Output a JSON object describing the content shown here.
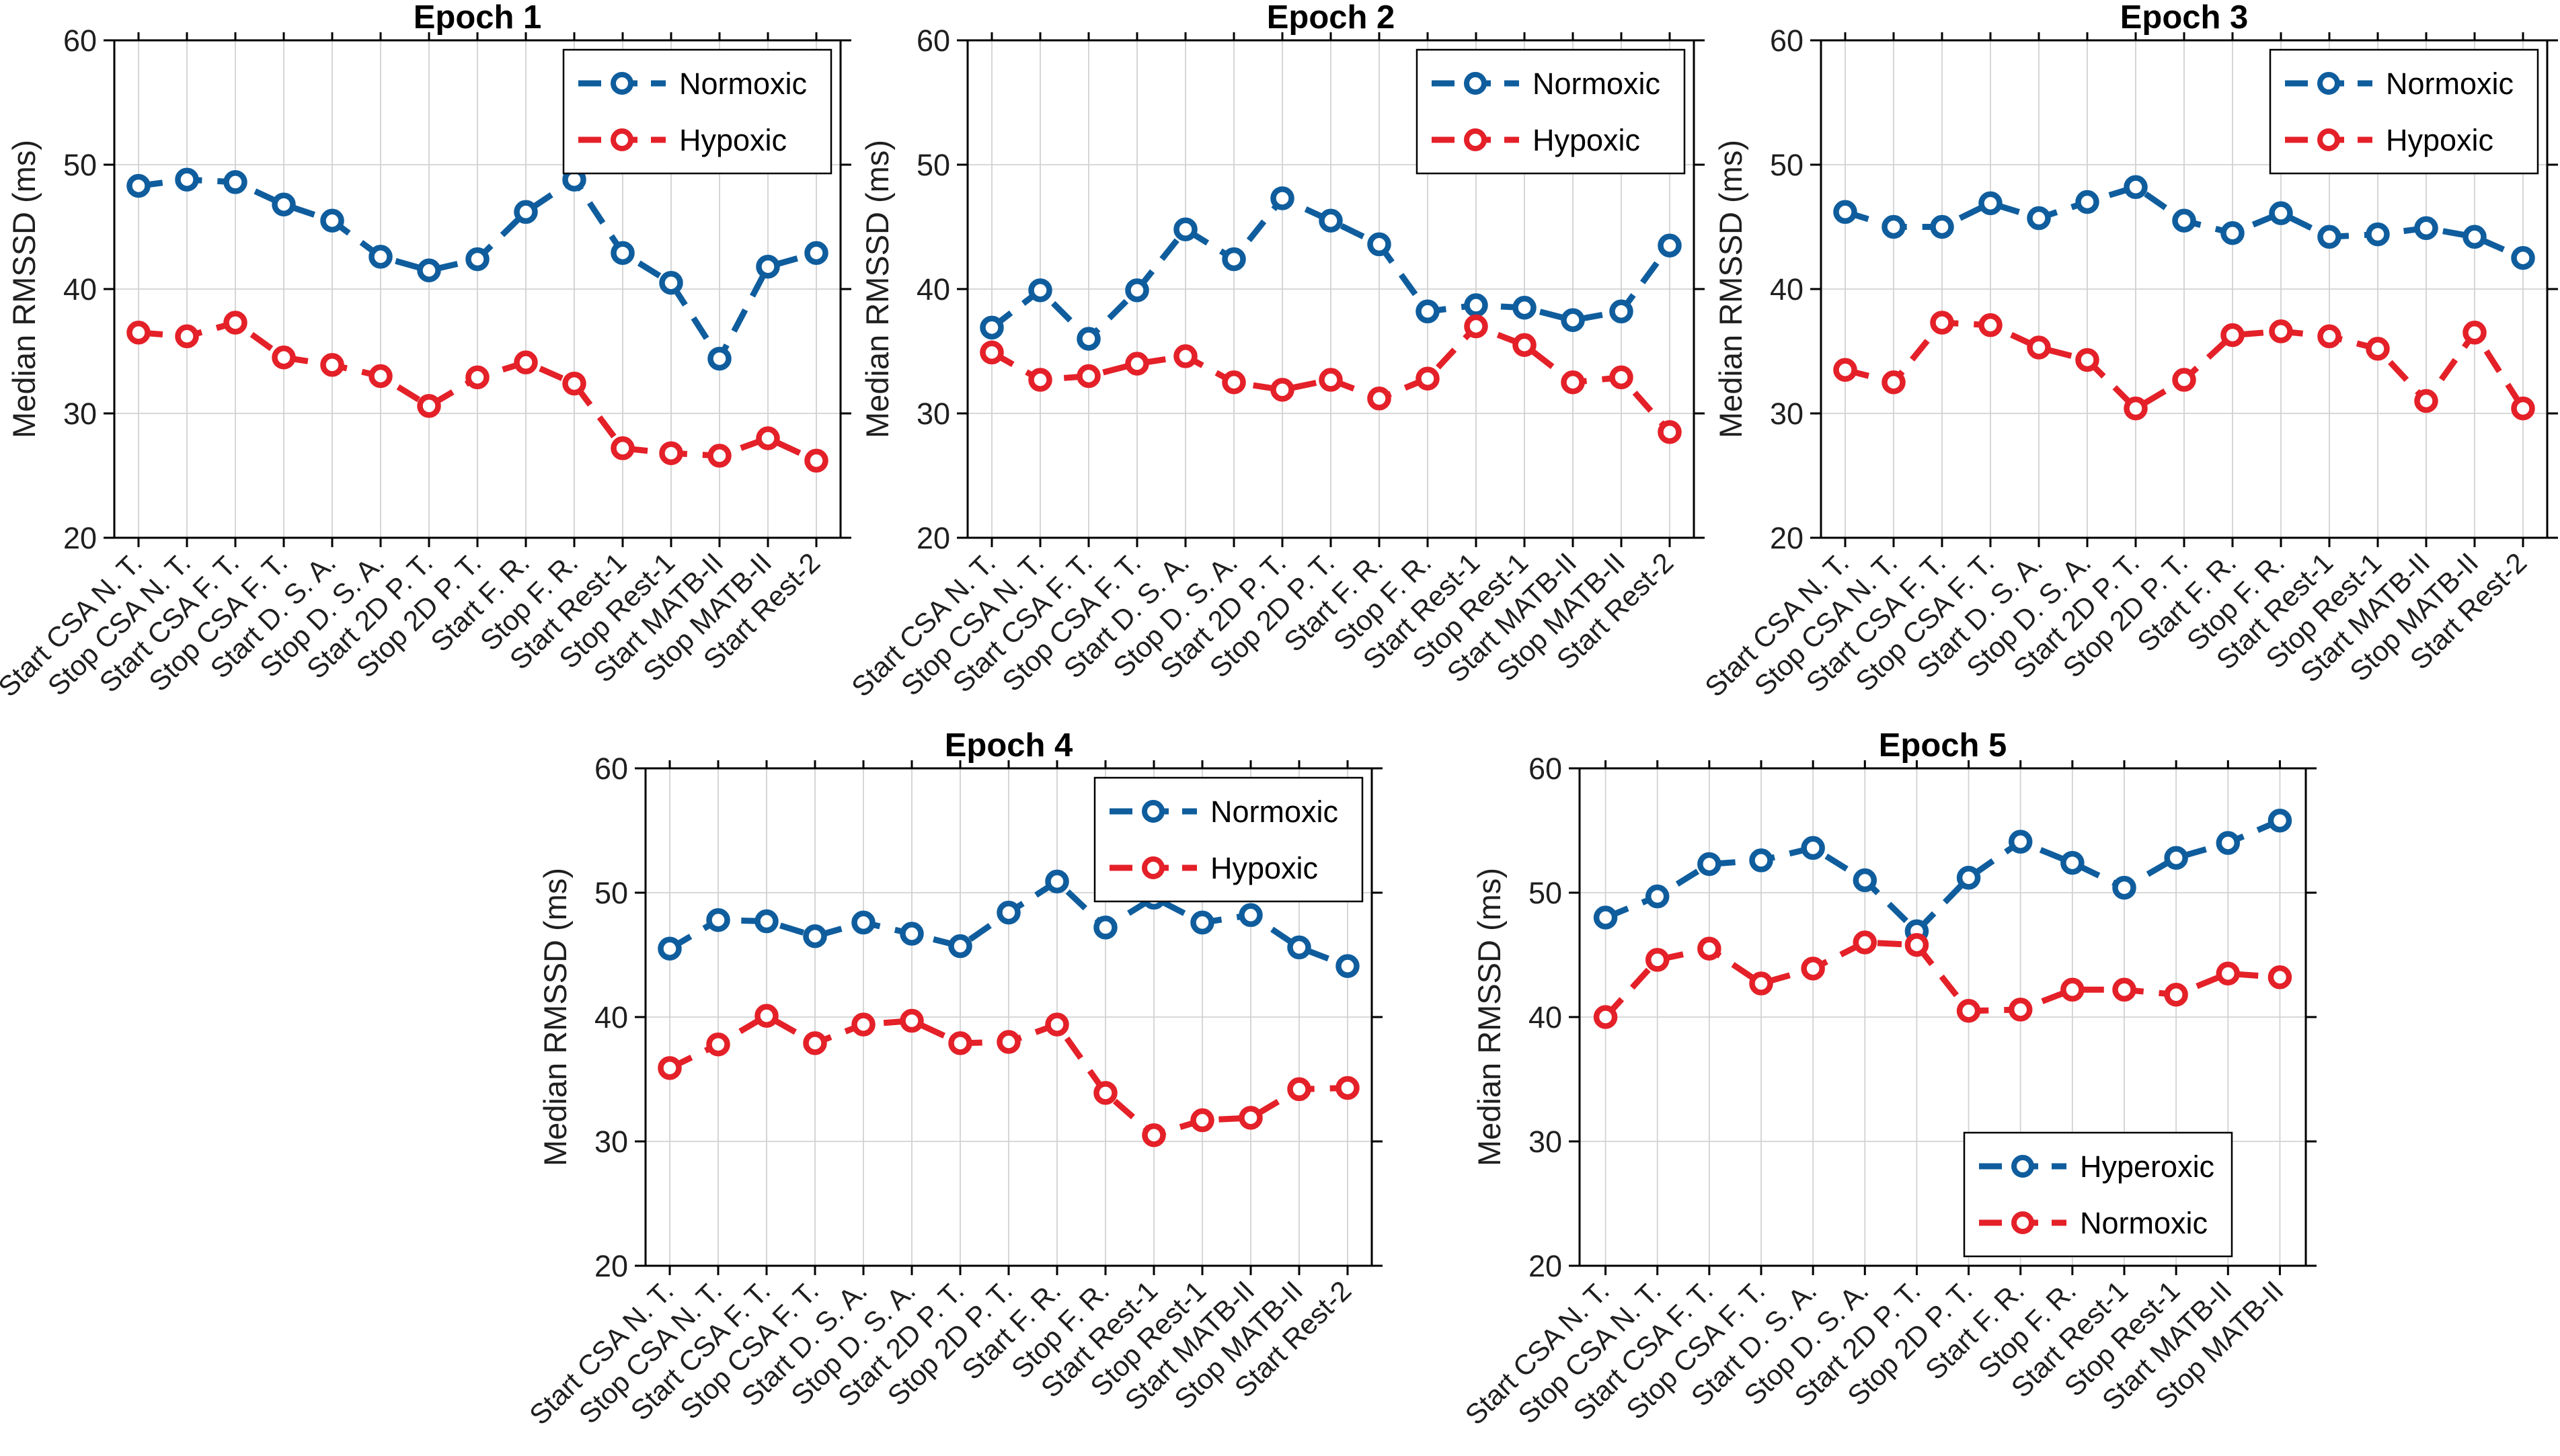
{
  "figure": {
    "background": "#ffffff",
    "ylabel": "Median RMSSD (ms)"
  },
  "colors": {
    "series_blue": "#0f5d9d",
    "series_red": "#e42028",
    "grid": "#d2d2d2",
    "axis": "#000000",
    "tick_text": "#1f1f1f",
    "title_text": "#000000",
    "legend_bg": "#ffffff",
    "legend_border": "#000000",
    "marker_fill": "#ffffff"
  },
  "chart_data": [
    {
      "type": "line",
      "title": "Epoch 1",
      "ylabel": "Median RMSSD (ms)",
      "ylim": [
        20,
        60
      ],
      "yticks": [
        20,
        30,
        40,
        50,
        60
      ],
      "grid": true,
      "legend_position": "top-right",
      "categories": [
        "Start CSA N. T.",
        "Stop CSA N. T.",
        "Start CSA F. T.",
        "Stop CSA F. T.",
        "Start D. S. A.",
        "Stop D. S. A.",
        "Start 2D P. T.",
        "Stop 2D P. T.",
        "Start F. R.",
        "Stop F. R.",
        "Start Rest-1",
        "Stop Rest-1",
        "Start MATB-II",
        "Stop MATB-II",
        "Start Rest-2"
      ],
      "series": [
        {
          "name": "Normoxic",
          "color": "series_blue",
          "linestyle": "dashed",
          "marker": "circle",
          "values": [
            48.3,
            48.8,
            48.6,
            46.8,
            45.5,
            42.6,
            41.5,
            42.4,
            46.2,
            48.8,
            42.9,
            40.5,
            34.4,
            41.8,
            42.9
          ]
        },
        {
          "name": "Hypoxic",
          "color": "series_red",
          "linestyle": "dashed",
          "marker": "circle",
          "values": [
            36.5,
            36.2,
            37.3,
            34.5,
            33.9,
            33.0,
            30.6,
            32.9,
            34.1,
            32.4,
            27.2,
            26.8,
            26.6,
            28.0,
            26.2
          ]
        }
      ]
    },
    {
      "type": "line",
      "title": "Epoch 2",
      "ylabel": "Median RMSSD (ms)",
      "ylim": [
        20,
        60
      ],
      "yticks": [
        20,
        30,
        40,
        50,
        60
      ],
      "grid": true,
      "legend_position": "top-right",
      "categories": [
        "Start CSA N. T.",
        "Stop CSA N. T.",
        "Start CSA F. T.",
        "Stop CSA F. T.",
        "Start D. S. A.",
        "Stop D. S. A.",
        "Start 2D P. T.",
        "Stop 2D P. T.",
        "Start F. R.",
        "Stop F. R.",
        "Start Rest-1",
        "Stop Rest-1",
        "Start MATB-II",
        "Stop MATB-II",
        "Start Rest-2"
      ],
      "series": [
        {
          "name": "Normoxic",
          "color": "series_blue",
          "linestyle": "dashed",
          "marker": "circle",
          "values": [
            36.9,
            39.9,
            36.0,
            39.9,
            44.8,
            42.4,
            47.3,
            45.5,
            43.6,
            38.2,
            38.7,
            38.5,
            37.5,
            38.2,
            43.5
          ]
        },
        {
          "name": "Hypoxic",
          "color": "series_red",
          "linestyle": "dashed",
          "marker": "circle",
          "values": [
            34.9,
            32.7,
            33.0,
            34.0,
            34.6,
            32.5,
            31.9,
            32.7,
            31.2,
            32.8,
            37.0,
            35.5,
            32.5,
            32.9,
            28.5
          ]
        }
      ]
    },
    {
      "type": "line",
      "title": "Epoch 3",
      "ylabel": "Median RMSSD (ms)",
      "ylim": [
        20,
        60
      ],
      "yticks": [
        20,
        30,
        40,
        50,
        60
      ],
      "grid": true,
      "legend_position": "top-right",
      "categories": [
        "Start CSA N. T.",
        "Stop CSA N. T.",
        "Start CSA F. T.",
        "Stop CSA F. T.",
        "Start D. S. A.",
        "Stop D. S. A.",
        "Start 2D P. T.",
        "Stop 2D P. T.",
        "Start F. R.",
        "Stop F. R.",
        "Start Rest-1",
        "Stop Rest-1",
        "Start MATB-II",
        "Stop MATB-II",
        "Start Rest-2"
      ],
      "series": [
        {
          "name": "Normoxic",
          "color": "series_blue",
          "linestyle": "dashed",
          "marker": "circle",
          "values": [
            46.2,
            45.0,
            45.0,
            46.9,
            45.7,
            47.0,
            48.2,
            45.5,
            44.5,
            46.1,
            44.2,
            44.4,
            44.9,
            44.2,
            42.5
          ]
        },
        {
          "name": "Hypoxic",
          "color": "series_red",
          "linestyle": "dashed",
          "marker": "circle",
          "values": [
            33.5,
            32.5,
            37.3,
            37.1,
            35.3,
            34.3,
            30.4,
            32.7,
            36.3,
            36.6,
            36.2,
            35.2,
            31.0,
            36.5,
            30.4
          ]
        }
      ]
    },
    {
      "type": "line",
      "title": "Epoch 4",
      "ylabel": "Median RMSSD (ms)",
      "ylim": [
        20,
        60
      ],
      "yticks": [
        20,
        30,
        40,
        50,
        60
      ],
      "grid": true,
      "legend_position": "top-right",
      "categories": [
        "Start CSA N. T.",
        "Stop CSA N. T.",
        "Start CSA F. T.",
        "Stop CSA F. T.",
        "Start D. S. A.",
        "Stop D. S. A.",
        "Start 2D P. T.",
        "Stop 2D P. T.",
        "Start F. R.",
        "Stop F. R.",
        "Start Rest-1",
        "Stop Rest-1",
        "Start MATB-II",
        "Stop MATB-II",
        "Start Rest-2"
      ],
      "series": [
        {
          "name": "Normoxic",
          "color": "series_blue",
          "linestyle": "dashed",
          "marker": "circle",
          "values": [
            45.5,
            47.8,
            47.7,
            46.5,
            47.6,
            46.7,
            45.7,
            48.4,
            50.9,
            47.2,
            49.6,
            47.6,
            48.2,
            45.6,
            44.1
          ]
        },
        {
          "name": "Hypoxic",
          "color": "series_red",
          "linestyle": "dashed",
          "marker": "circle",
          "values": [
            35.9,
            37.8,
            40.1,
            37.9,
            39.4,
            39.7,
            37.9,
            38.0,
            39.4,
            33.9,
            30.5,
            31.7,
            31.9,
            34.2,
            34.3
          ]
        }
      ]
    },
    {
      "type": "line",
      "title": "Epoch 5",
      "ylabel": "Median RMSSD (ms)",
      "ylim": [
        20,
        60
      ],
      "yticks": [
        20,
        30,
        40,
        50,
        60
      ],
      "grid": true,
      "legend_position": "bottom-right",
      "categories": [
        "Start CSA N. T.",
        "Stop CSA N. T.",
        "Start CSA F. T.",
        "Stop CSA F. T.",
        "Start D. S. A.",
        "Stop D. S. A.",
        "Start 2D P. T.",
        "Stop 2D P. T.",
        "Start F. R.",
        "Stop F. R.",
        "Start Rest-1",
        "Stop Rest-1",
        "Start MATB-II",
        "Stop MATB-II"
      ],
      "series": [
        {
          "name": "Hyperoxic",
          "color": "series_blue",
          "linestyle": "dashed",
          "marker": "circle",
          "values": [
            48.0,
            49.7,
            52.3,
            52.6,
            53.6,
            51.0,
            46.9,
            51.2,
            54.1,
            52.4,
            50.4,
            52.8,
            54.0,
            55.8
          ]
        },
        {
          "name": "Normoxic",
          "color": "series_red",
          "linestyle": "dashed",
          "marker": "circle",
          "values": [
            40.0,
            44.6,
            45.5,
            42.7,
            43.9,
            46.0,
            45.8,
            40.5,
            40.6,
            42.2,
            42.2,
            41.8,
            43.5,
            43.2
          ]
        }
      ]
    }
  ]
}
